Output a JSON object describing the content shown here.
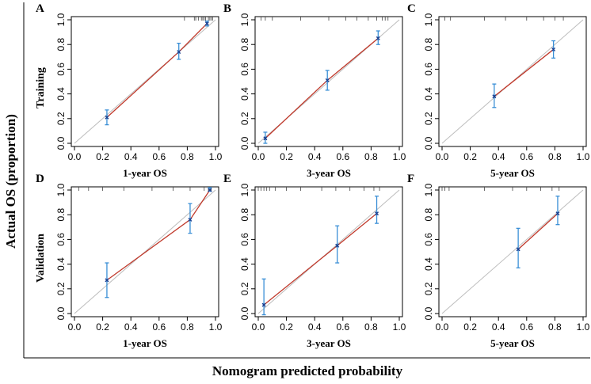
{
  "figure": {
    "y_label": "Actual OS (proportion)",
    "x_label": "Nomogram predicted probability",
    "row_labels": [
      "Training",
      "Validation"
    ]
  },
  "colors": {
    "calibration_line": "#c0392b",
    "error_bar": "#3a8fd6",
    "point": "#1a3f8f",
    "ideal_line": "#bdbdbd",
    "axis": "#000000",
    "rug": "#444444"
  },
  "chart_data": [
    {
      "panel": "A",
      "type": "scatter",
      "row": "Training",
      "xlabel": "1-year OS",
      "xlim": [
        0,
        1
      ],
      "ylim": [
        0,
        1
      ],
      "xticks": [
        "0.0",
        "0.2",
        "0.4",
        "0.6",
        "0.8",
        "1.0"
      ],
      "yticks": [
        "0.0",
        "0.2",
        "0.4",
        "0.6",
        "0.8",
        "1.0"
      ],
      "points": [
        {
          "x": 0.23,
          "y": 0.21,
          "lo": 0.15,
          "hi": 0.27
        },
        {
          "x": 0.74,
          "y": 0.74,
          "lo": 0.68,
          "hi": 0.81
        },
        {
          "x": 0.94,
          "y": 0.97,
          "lo": 0.95,
          "hi": 0.99
        }
      ],
      "rug_x": [
        0.78,
        0.85,
        0.86,
        0.88,
        0.9,
        0.91,
        0.92,
        0.93,
        0.95,
        0.96,
        0.97,
        0.98
      ]
    },
    {
      "panel": "B",
      "type": "scatter",
      "row": "Training",
      "xlabel": "3-year OS",
      "xlim": [
        0,
        1
      ],
      "ylim": [
        0,
        1
      ],
      "xticks": [
        "0.0",
        "0.2",
        "0.4",
        "0.6",
        "0.8",
        "1.0"
      ],
      "yticks": [
        "0.0",
        "0.2",
        "0.4",
        "0.6",
        "0.8",
        "1.0"
      ],
      "points": [
        {
          "x": 0.05,
          "y": 0.04,
          "lo": 0.0,
          "hi": 0.09
        },
        {
          "x": 0.49,
          "y": 0.51,
          "lo": 0.43,
          "hi": 0.59
        },
        {
          "x": 0.85,
          "y": 0.85,
          "lo": 0.8,
          "hi": 0.91
        }
      ],
      "rug_x": [
        0.02,
        0.05,
        0.1,
        0.3,
        0.5,
        0.62,
        0.7,
        0.78,
        0.84,
        0.88,
        0.9,
        0.92
      ]
    },
    {
      "panel": "C",
      "type": "scatter",
      "row": "Training",
      "xlabel": "5-year OS",
      "xlim": [
        0,
        1
      ],
      "ylim": [
        0,
        1
      ],
      "xticks": [
        "0.0",
        "0.2",
        "0.4",
        "0.6",
        "0.8",
        "1.0"
      ],
      "yticks": [
        "0.0",
        "0.2",
        "0.4",
        "0.6",
        "0.8",
        "1.0"
      ],
      "points": [
        {
          "x": 0.37,
          "y": 0.38,
          "lo": 0.29,
          "hi": 0.48
        },
        {
          "x": 0.79,
          "y": 0.76,
          "lo": 0.69,
          "hi": 0.83
        }
      ],
      "rug_x": [
        0.02,
        0.06,
        0.3,
        0.45,
        0.6,
        0.72,
        0.8,
        0.86
      ]
    },
    {
      "panel": "D",
      "type": "scatter",
      "row": "Validation",
      "xlabel": "1-year OS",
      "xlim": [
        0,
        1
      ],
      "ylim": [
        0,
        1
      ],
      "xticks": [
        "0.0",
        "0.2",
        "0.4",
        "0.6",
        "0.8",
        "1.0"
      ],
      "yticks": [
        "0.0",
        "0.2",
        "0.4",
        "0.6",
        "0.8",
        "1.0"
      ],
      "points": [
        {
          "x": 0.23,
          "y": 0.27,
          "lo": 0.13,
          "hi": 0.41
        },
        {
          "x": 0.82,
          "y": 0.76,
          "lo": 0.65,
          "hi": 0.89
        },
        {
          "x": 0.96,
          "y": 1.0,
          "lo": 0.99,
          "hi": 1.02
        }
      ],
      "rug_x": [
        0.03,
        0.1,
        0.2,
        0.35,
        0.55,
        0.7,
        0.82,
        0.92,
        0.95,
        0.97
      ]
    },
    {
      "panel": "E",
      "type": "scatter",
      "row": "Validation",
      "xlabel": "3-year OS",
      "xlim": [
        0,
        1
      ],
      "ylim": [
        0,
        1
      ],
      "xticks": [
        "0.0",
        "0.2",
        "0.4",
        "0.6",
        "0.8",
        "1.0"
      ],
      "yticks": [
        "0.0",
        "0.2",
        "0.4",
        "0.6",
        "0.8",
        "1.0"
      ],
      "points": [
        {
          "x": 0.04,
          "y": 0.07,
          "lo": -0.01,
          "hi": 0.28
        },
        {
          "x": 0.56,
          "y": 0.55,
          "lo": 0.41,
          "hi": 0.71
        },
        {
          "x": 0.84,
          "y": 0.81,
          "lo": 0.73,
          "hi": 0.95
        }
      ],
      "rug_x": [
        0.0,
        0.02,
        0.04,
        0.06,
        0.08,
        0.12,
        0.2,
        0.3,
        0.45,
        0.55,
        0.65,
        0.75,
        0.82,
        0.86
      ]
    },
    {
      "panel": "F",
      "type": "scatter",
      "row": "Validation",
      "xlabel": "5-year OS",
      "xlim": [
        0,
        1
      ],
      "ylim": [
        0,
        1
      ],
      "xticks": [
        "0.0",
        "0.2",
        "0.4",
        "0.6",
        "0.8",
        "1.0"
      ],
      "yticks": [
        "0.0",
        "0.2",
        "0.4",
        "0.6",
        "0.8",
        "1.0"
      ],
      "points": [
        {
          "x": 0.54,
          "y": 0.52,
          "lo": 0.37,
          "hi": 0.69
        },
        {
          "x": 0.82,
          "y": 0.81,
          "lo": 0.72,
          "hi": 0.95
        }
      ],
      "rug_x": [
        0.0,
        0.02,
        0.05,
        0.3,
        0.5,
        0.6,
        0.7,
        0.78,
        0.83
      ]
    }
  ]
}
